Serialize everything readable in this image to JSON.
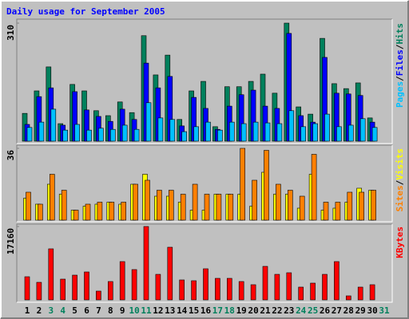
{
  "title": "Daily usage for September 2005",
  "legend_separator": "/",
  "chart_data": [
    {
      "type": "bar",
      "ylim": [
        0,
        310
      ],
      "yticks": [
        310
      ],
      "series": [
        {
          "name": "Hits",
          "color": "#00805C",
          "values": [
            73,
            132,
            195,
            46,
            149,
            132,
            80,
            67,
            103,
            75,
            277,
            174,
            226,
            57,
            132,
            157,
            38,
            143,
            143,
            157,
            176,
            126,
            310,
            90,
            71,
            270,
            151,
            138,
            153,
            61,
            null
          ]
        },
        {
          "name": "Files",
          "color": "#0000FF",
          "values": [
            44,
            117,
            140,
            42,
            130,
            82,
            65,
            52,
            84,
            57,
            205,
            140,
            170,
            40,
            115,
            86,
            31,
            92,
            122,
            134,
            92,
            86,
            283,
            67,
            50,
            220,
            126,
            124,
            120,
            50,
            null
          ]
        },
        {
          "name": "Pages",
          "color": "#00C0FF",
          "values": [
            36,
            50,
            84,
            29,
            44,
            29,
            34,
            31,
            42,
            31,
            101,
            61,
            57,
            25,
            38,
            50,
            29,
            50,
            46,
            50,
            48,
            46,
            80,
            38,
            46,
            71,
            38,
            42,
            59,
            36,
            null
          ]
        }
      ]
    },
    {
      "type": "bar",
      "ylim": [
        0,
        36
      ],
      "yticks": [
        36
      ],
      "series": [
        {
          "name": "Visits",
          "color": "#FFFF00",
          "values": [
            11,
            8,
            18,
            13,
            5,
            7,
            8,
            9,
            8,
            18,
            23,
            12,
            12,
            9,
            5,
            5,
            13,
            13,
            13,
            7,
            24,
            13,
            13,
            6,
            23,
            5,
            6,
            9,
            16,
            15,
            null
          ]
        },
        {
          "name": "Sites",
          "color": "#FF8000",
          "values": [
            14,
            8,
            23,
            15,
            5,
            8,
            9,
            9,
            9,
            18,
            20,
            15,
            15,
            13,
            18,
            13,
            13,
            13,
            36,
            20,
            35,
            18,
            15,
            12,
            33,
            9,
            9,
            14,
            14,
            15,
            null
          ]
        }
      ]
    },
    {
      "type": "bar",
      "ylim": [
        0,
        17160
      ],
      "yticks": [
        17160
      ],
      "categories": [
        "1",
        "2",
        "3",
        "4",
        "5",
        "6",
        "7",
        "8",
        "9",
        "10",
        "11",
        "12",
        "13",
        "14",
        "15",
        "16",
        "17",
        "18",
        "19",
        "20",
        "21",
        "22",
        "23",
        "24",
        "25",
        "26",
        "27",
        "28",
        "29",
        "30",
        "31"
      ],
      "highlight_categories": [
        "3",
        "4",
        "10",
        "11",
        "17",
        "18",
        "24",
        "25",
        "31"
      ],
      "highlight_color": "#00805C",
      "series": [
        {
          "name": "KBytes",
          "color": "#FF0000",
          "values": [
            5409,
            4103,
            11937,
            4849,
            5782,
            6528,
            2052,
            4290,
            8953,
            7088,
            17160,
            5969,
            12310,
            4663,
            4476,
            7274,
            5036,
            5036,
            4290,
            3544,
            7834,
            5969,
            6342,
            2984,
            3917,
            5969,
            8953,
            933,
            2984,
            3544,
            null
          ]
        }
      ]
    }
  ]
}
